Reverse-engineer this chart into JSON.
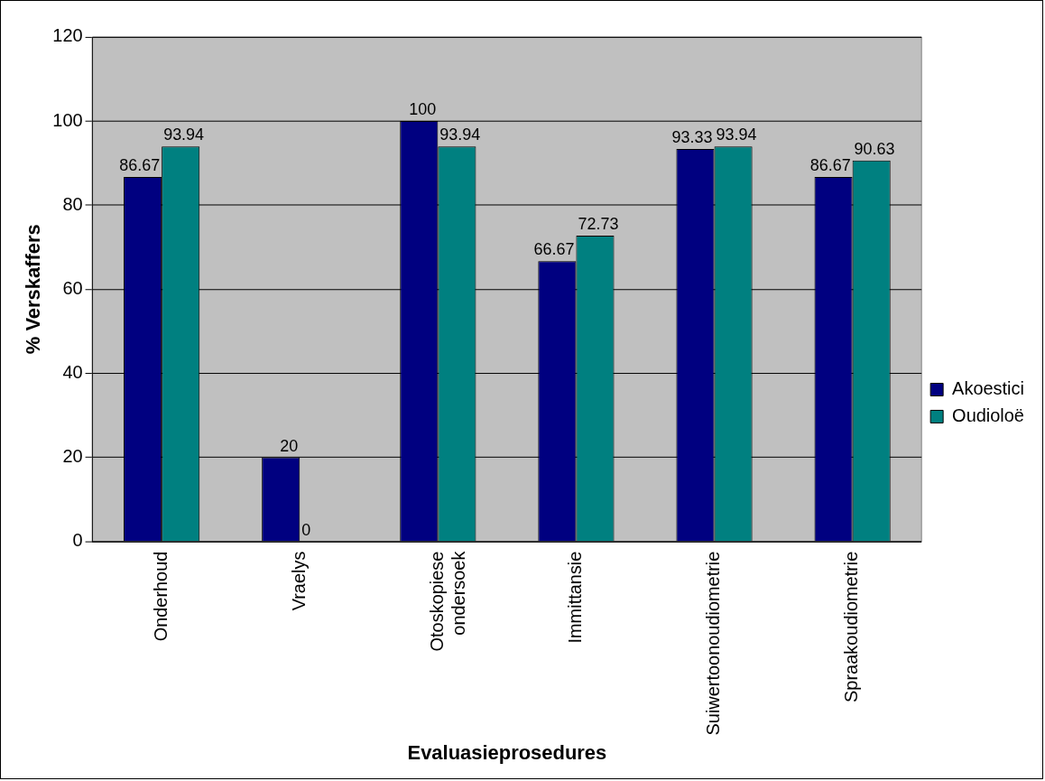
{
  "chart_data": {
    "type": "bar",
    "xlabel": "Evaluasieprosedures",
    "ylabel": "% Verskaffers",
    "categories": [
      "Onderhoud",
      "Vraelys",
      "Otoskopiese ondersoek",
      "Immittansie",
      "Suiwertoonoudiometrie",
      "Spraakoudiometrie"
    ],
    "series": [
      {
        "name": "Akoestici",
        "color": "#000080",
        "values": [
          86.67,
          20,
          100,
          66.67,
          93.33,
          86.67
        ]
      },
      {
        "name": "Oudioloë",
        "color": "#008080",
        "values": [
          93.94,
          0,
          93.94,
          72.73,
          93.94,
          90.63
        ]
      }
    ],
    "ylim": [
      0,
      120
    ],
    "yticks": [
      0,
      20,
      40,
      60,
      80,
      100,
      120
    ],
    "grid": "y",
    "legend": "right",
    "data_labels": true
  }
}
